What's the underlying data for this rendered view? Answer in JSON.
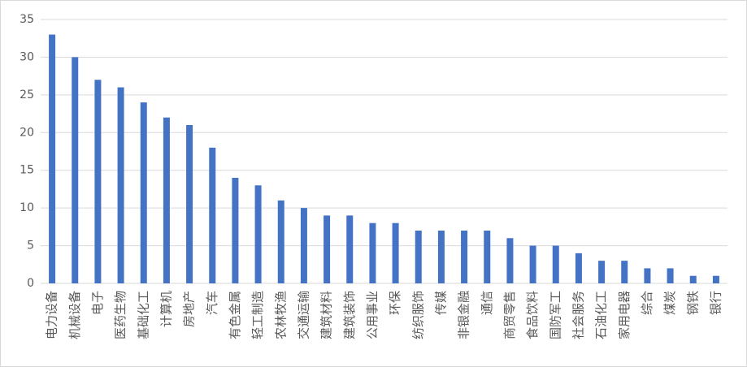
{
  "chart_data": {
    "type": "bar",
    "categories": [
      "电力设备",
      "机械设备",
      "电子",
      "医药生物",
      "基础化工",
      "计算机",
      "房地产",
      "汽车",
      "有色金属",
      "轻工制造",
      "农林牧渔",
      "交通运输",
      "建筑材料",
      "建筑装饰",
      "公用事业",
      "环保",
      "纺织服饰",
      "传媒",
      "非银金融",
      "通信",
      "商贸零售",
      "食品饮料",
      "国防军工",
      "社会服务",
      "石油化工",
      "家用电器",
      "综合",
      "煤炭",
      "钢铁",
      "银行"
    ],
    "values": [
      33,
      30,
      27,
      26,
      24,
      22,
      21,
      18,
      14,
      13,
      11,
      10,
      9,
      9,
      8,
      8,
      7,
      7,
      7,
      7,
      6,
      5,
      5,
      4,
      3,
      3,
      2,
      2,
      1,
      1
    ],
    "color": "#4472c4",
    "ylim": [
      0,
      35
    ],
    "yticks": [
      0,
      5,
      10,
      15,
      20,
      25,
      30,
      35
    ],
    "grid": true
  }
}
